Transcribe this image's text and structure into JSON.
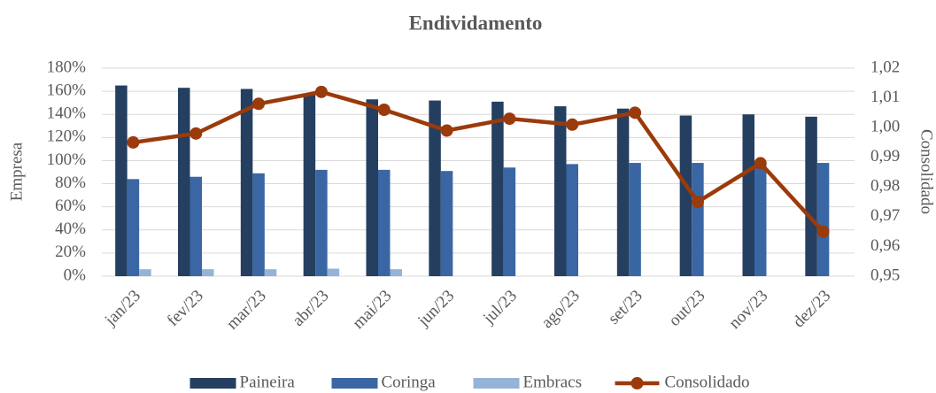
{
  "chart_data": {
    "type": "bar",
    "title": "Endividamento",
    "ylabel": "Empresa",
    "y2label": "Consolidado",
    "categories": [
      "jan/23",
      "fev/23",
      "mar/23",
      "abr/23",
      "mai/23",
      "jun/23",
      "jul/23",
      "ago/23",
      "set/23",
      "out/23",
      "nov/23",
      "dez/23"
    ],
    "series": [
      {
        "name": "Paineira",
        "color": "#243f60",
        "values": [
          165,
          163,
          162,
          158,
          153,
          152,
          151,
          147,
          145,
          139,
          140,
          138
        ]
      },
      {
        "name": "Coringa",
        "color": "#3a67a3",
        "values": [
          84,
          86,
          89,
          92,
          92,
          91,
          94,
          97,
          98,
          98,
          98,
          98
        ]
      },
      {
        "name": "Embracs",
        "color": "#95b3d7",
        "values": [
          6,
          6,
          6,
          6.5,
          6,
          null,
          null,
          null,
          null,
          null,
          null,
          null
        ]
      },
      {
        "name": "Consolidado",
        "color": "#9b3a0a",
        "axis": "y2",
        "values": [
          0.995,
          0.998,
          1.008,
          1.012,
          1.006,
          0.999,
          1.003,
          1.001,
          1.005,
          0.975,
          0.988,
          0.965
        ]
      }
    ],
    "ylim": [
      0,
      180
    ],
    "yticks": [
      {
        "value": 0,
        "label": "0%"
      },
      {
        "value": 20,
        "label": "20%"
      },
      {
        "value": 40,
        "label": "40%"
      },
      {
        "value": 60,
        "label": "60%"
      },
      {
        "value": 80,
        "label": "80%"
      },
      {
        "value": 100,
        "label": "100%"
      },
      {
        "value": 120,
        "label": "120%"
      },
      {
        "value": 140,
        "label": "140%"
      },
      {
        "value": 160,
        "label": "160%"
      },
      {
        "value": 180,
        "label": "180%"
      }
    ],
    "y2lim": [
      0.95,
      1.02
    ],
    "y2ticks": [
      {
        "value": 0.95,
        "label": "0,95"
      },
      {
        "value": 0.96,
        "label": "0,96"
      },
      {
        "value": 0.97,
        "label": "0,97"
      },
      {
        "value": 0.98,
        "label": "0,98"
      },
      {
        "value": 0.99,
        "label": "0,99"
      },
      {
        "value": 1.0,
        "label": "1,00"
      },
      {
        "value": 1.01,
        "label": "1,01"
      },
      {
        "value": 1.02,
        "label": "1,02"
      }
    ],
    "grid": true,
    "legend": "bottom"
  }
}
